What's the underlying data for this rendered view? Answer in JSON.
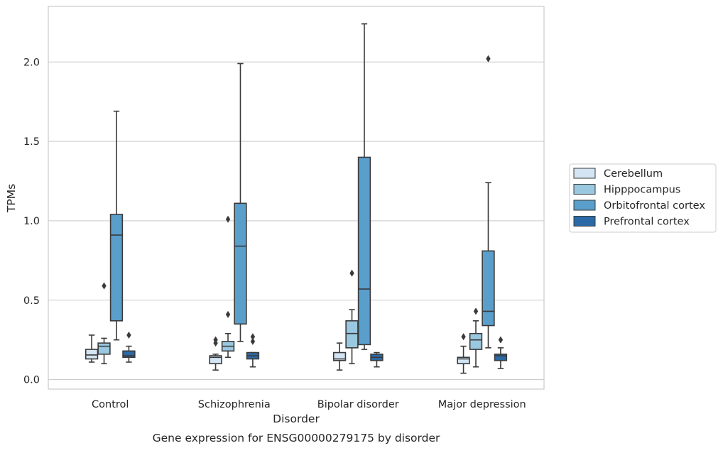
{
  "chart_data": {
    "type": "box",
    "xlabel": "Disorder",
    "ylabel": "TPMs",
    "caption": "Gene expression for ENSG00000279175 by disorder",
    "ylim": [
      -0.06,
      2.35
    ],
    "yticks": [
      "0.0",
      "0.5",
      "1.0",
      "1.5",
      "2.0"
    ],
    "grid": "horizontal",
    "legend_position": "right",
    "categories": [
      "Control",
      "Schizophrenia",
      "Bipolar disorder",
      "Major depression"
    ],
    "series": [
      {
        "name": "Cerebellum",
        "color": "#d3e4f3",
        "boxes": [
          {
            "whisker_low": 0.11,
            "q1": 0.13,
            "median": 0.155,
            "q3": 0.19,
            "whisker_high": 0.28,
            "outliers": []
          },
          {
            "whisker_low": 0.06,
            "q1": 0.1,
            "median": 0.14,
            "q3": 0.15,
            "whisker_high": 0.16,
            "outliers": [
              0.23,
              0.25
            ]
          },
          {
            "whisker_low": 0.06,
            "q1": 0.12,
            "median": 0.13,
            "q3": 0.17,
            "whisker_high": 0.23,
            "outliers": []
          },
          {
            "whisker_low": 0.04,
            "q1": 0.1,
            "median": 0.13,
            "q3": 0.14,
            "whisker_high": 0.21,
            "outliers": [
              0.27
            ]
          }
        ]
      },
      {
        "name": "Hipppocampus",
        "color": "#9ac8e0",
        "boxes": [
          {
            "whisker_low": 0.1,
            "q1": 0.16,
            "median": 0.21,
            "q3": 0.23,
            "whisker_high": 0.26,
            "outliers": [
              0.59
            ]
          },
          {
            "whisker_low": 0.14,
            "q1": 0.18,
            "median": 0.21,
            "q3": 0.24,
            "whisker_high": 0.29,
            "outliers": [
              0.41,
              1.01
            ]
          },
          {
            "whisker_low": 0.1,
            "q1": 0.2,
            "median": 0.29,
            "q3": 0.37,
            "whisker_high": 0.44,
            "outliers": [
              0.67
            ]
          },
          {
            "whisker_low": 0.08,
            "q1": 0.19,
            "median": 0.25,
            "q3": 0.29,
            "whisker_high": 0.37,
            "outliers": [
              0.43
            ]
          }
        ]
      },
      {
        "name": "Orbitofrontal cortex",
        "color": "#5a9ecb",
        "boxes": [
          {
            "whisker_low": 0.25,
            "q1": 0.37,
            "median": 0.91,
            "q3": 1.04,
            "whisker_high": 1.69,
            "outliers": []
          },
          {
            "whisker_low": 0.24,
            "q1": 0.35,
            "median": 0.84,
            "q3": 1.11,
            "whisker_high": 1.99,
            "outliers": []
          },
          {
            "whisker_low": 0.19,
            "q1": 0.22,
            "median": 0.57,
            "q3": 1.4,
            "whisker_high": 2.24,
            "outliers": []
          },
          {
            "whisker_low": 0.2,
            "q1": 0.34,
            "median": 0.43,
            "q3": 0.81,
            "whisker_high": 1.24,
            "outliers": [
              2.02
            ]
          }
        ]
      },
      {
        "name": "Prefrontal cortex",
        "color": "#2b6aa6",
        "boxes": [
          {
            "whisker_low": 0.11,
            "q1": 0.14,
            "median": 0.15,
            "q3": 0.18,
            "whisker_high": 0.21,
            "outliers": [
              0.28
            ]
          },
          {
            "whisker_low": 0.08,
            "q1": 0.13,
            "median": 0.15,
            "q3": 0.17,
            "whisker_high": 0.17,
            "outliers": [
              0.24,
              0.27
            ]
          },
          {
            "whisker_low": 0.08,
            "q1": 0.12,
            "median": 0.14,
            "q3": 0.16,
            "whisker_high": 0.17,
            "outliers": []
          },
          {
            "whisker_low": 0.07,
            "q1": 0.12,
            "median": 0.15,
            "q3": 0.16,
            "whisker_high": 0.2,
            "outliers": [
              0.25
            ]
          }
        ]
      }
    ]
  }
}
